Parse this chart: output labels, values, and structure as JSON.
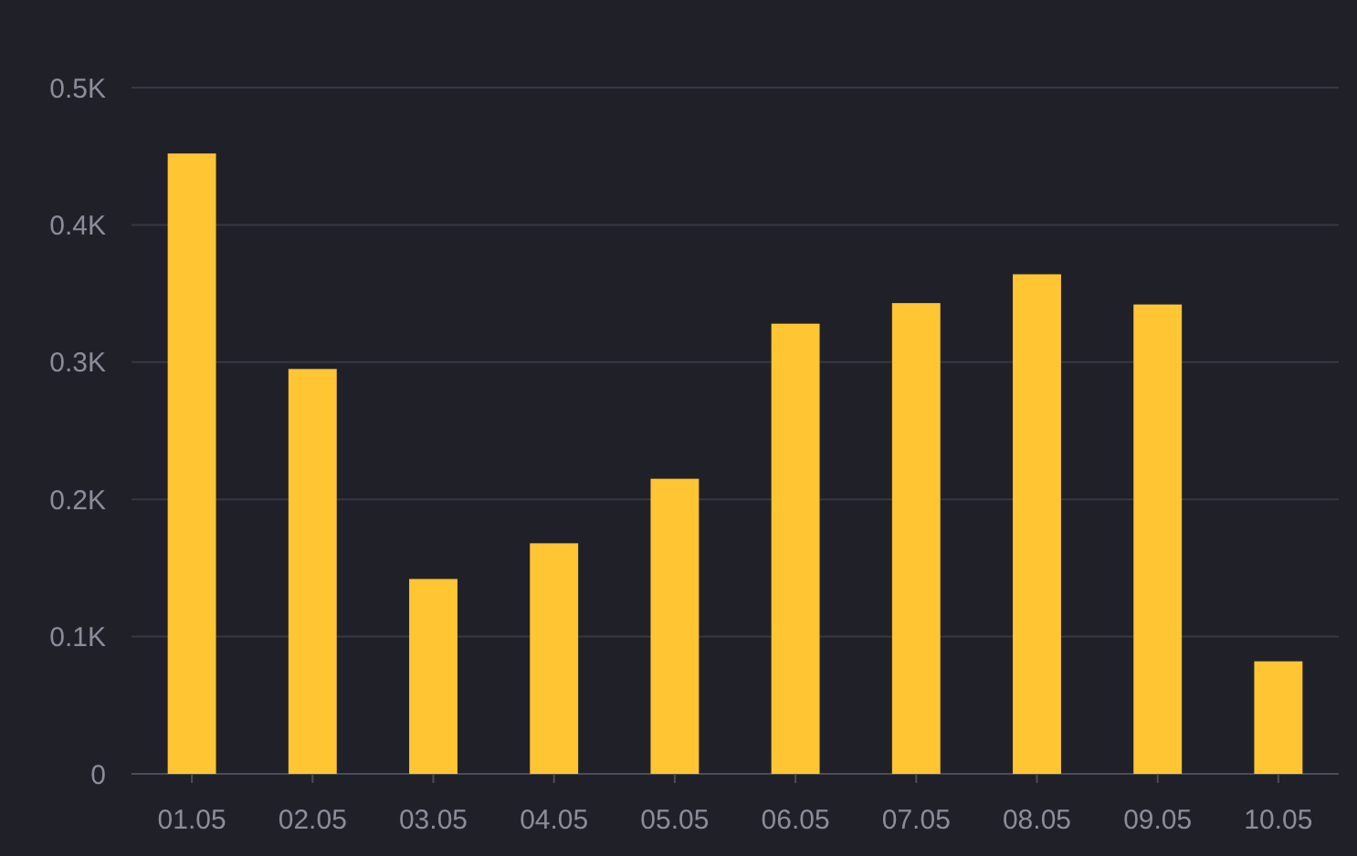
{
  "chart_data": {
    "type": "bar",
    "categories": [
      "01.05",
      "02.05",
      "03.05",
      "04.05",
      "05.05",
      "06.05",
      "07.05",
      "08.05",
      "09.05",
      "10.05"
    ],
    "values": [
      0.452,
      0.295,
      0.142,
      0.168,
      0.215,
      0.328,
      0.343,
      0.364,
      0.342,
      0.082
    ],
    "color": "#ffc533",
    "ylim": [
      0,
      0.5
    ],
    "yticks": [
      0,
      {
        "value": 0.1,
        "label": "0.1K"
      },
      {
        "value": 0.2,
        "label": "0.2K"
      },
      {
        "value": 0.3,
        "label": "0.3K"
      },
      {
        "value": 0.4,
        "label": "0.4K"
      },
      {
        "value": 0.5,
        "label": "0.5K"
      }
    ],
    "grid": "y"
  }
}
